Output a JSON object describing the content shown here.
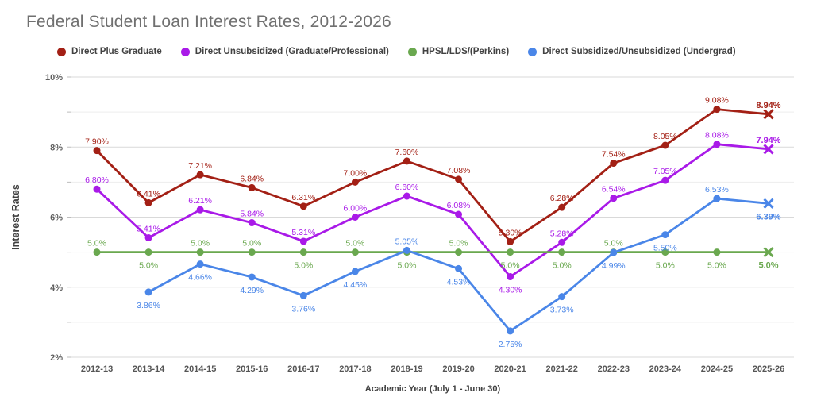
{
  "chart_data": {
    "type": "line",
    "title": "Federal Student Loan Interest Rates, 2012-2026",
    "xlabel": "Academic Year (July 1 - June 30)",
    "ylabel": "Interest Rates",
    "ylim": [
      2,
      10
    ],
    "ytick_labels": [
      "2%",
      "4%",
      "6%",
      "8%",
      "10%"
    ],
    "gridlines": "horizontal every 1%, labeled every 2%",
    "legend_position": "top",
    "final_point_marker": "x-cross on last category (2025-26)",
    "categories": [
      "2012-13",
      "2013-14",
      "2014-15",
      "2015-16",
      "2016-17",
      "2017-18",
      "2018-19",
      "2019-20",
      "2020-21",
      "2021-22",
      "2022-23",
      "2023-24",
      "2024-25",
      "2025-26"
    ],
    "series": [
      {
        "name": "Direct Plus Graduate",
        "color": "#a32015",
        "values": [
          7.9,
          6.41,
          7.21,
          6.84,
          6.31,
          7.0,
          7.6,
          7.08,
          5.3,
          6.28,
          7.54,
          8.05,
          9.08,
          8.94
        ],
        "labels": [
          "7.90%",
          "6.41%",
          "7.21%",
          "6.84%",
          "6.31%",
          "7.00%",
          "7.60%",
          "7.08%",
          "5.30%",
          "6.28%",
          "7.54%",
          "8.05%",
          "9.08%",
          "8.94%"
        ],
        "label_positions": [
          "above",
          "above",
          "above",
          "above",
          "above",
          "above",
          "above",
          "above",
          "above",
          "above",
          "above",
          "above",
          "above",
          "above"
        ]
      },
      {
        "name": "Direct Unsubsidized (Graduate/Professional)",
        "color": "#a91ae8",
        "values": [
          6.8,
          5.41,
          6.21,
          5.84,
          5.31,
          6.0,
          6.6,
          6.08,
          4.3,
          5.28,
          6.54,
          7.05,
          8.08,
          7.94
        ],
        "labels": [
          "6.80%",
          "5.41%",
          "6.21%",
          "5.84%",
          "5.31%",
          "6.00%",
          "6.60%",
          "6.08%",
          "4.30%",
          "5.28%",
          "6.54%",
          "7.05%",
          "8.08%",
          "7.94%"
        ],
        "label_positions": [
          "above",
          "above",
          "above",
          "above",
          "above",
          "above",
          "above",
          "above",
          "below",
          "above",
          "above",
          "above",
          "above",
          "above"
        ]
      },
      {
        "name": "HPSL/LDS/(Perkins)",
        "color": "#6aa84f",
        "values": [
          5.0,
          5.0,
          5.0,
          5.0,
          5.0,
          5.0,
          5.0,
          5.0,
          5.0,
          5.0,
          5.0,
          5.0,
          5.0,
          5.0
        ],
        "labels": [
          "5.0%",
          "5.0%",
          "5.0%",
          "5.0%",
          "5.0%",
          "5.0%",
          "5.0%",
          "5.0%",
          "5.0%",
          "5.0%",
          "5.0%",
          "5.0%",
          "5.0%",
          "5.0%"
        ],
        "label_positions": [
          "above",
          "below",
          "above",
          "above",
          "below",
          "above",
          "below",
          "above",
          "below",
          "below",
          "above",
          "below",
          "below",
          "below"
        ]
      },
      {
        "name": "Direct Subsidized/Unsubsidized (Undergrad)",
        "color": "#4a86e8",
        "values": [
          null,
          3.86,
          4.66,
          4.29,
          3.76,
          4.45,
          5.05,
          4.53,
          2.75,
          3.73,
          4.99,
          5.5,
          6.53,
          6.39
        ],
        "labels": [
          null,
          "3.86%",
          "4.66%",
          "4.29%",
          "3.76%",
          "4.45%",
          "5.05%",
          "4.53%",
          "2.75%",
          "3.73%",
          "4.99%",
          "5.50%",
          "6.53%",
          "6.39%"
        ],
        "label_positions": [
          null,
          "below",
          "below",
          "below",
          "below",
          "below",
          "above",
          "below",
          "below",
          "below",
          "below",
          "below",
          "above",
          "below"
        ]
      }
    ]
  }
}
